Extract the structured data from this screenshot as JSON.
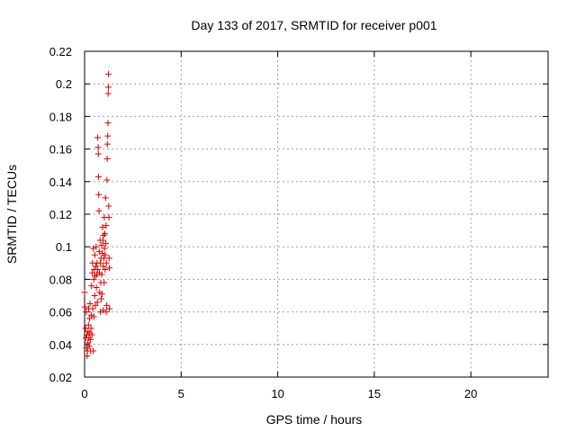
{
  "chart_data": {
    "type": "scatter",
    "title": "Day 133 of 2017, SRMTID for receiver p001",
    "xlabel": "GPS time / hours",
    "ylabel": "SRMTID / TECUs",
    "xlim": [
      0,
      24
    ],
    "ylim": [
      0.02,
      0.22
    ],
    "xticks": [
      0,
      5,
      10,
      15,
      20
    ],
    "xtick_labels": [
      "0",
      "5",
      "10",
      "15",
      "20"
    ],
    "yticks": [
      0.02,
      0.04,
      0.06,
      0.08,
      0.1,
      0.12,
      0.14,
      0.16,
      0.18,
      0.2,
      0.22
    ],
    "ytick_labels": [
      "0.02",
      "0.04",
      "0.06",
      "0.08",
      "0.1",
      "0.12",
      "0.14",
      "0.16",
      "0.18",
      "0.2",
      "0.22"
    ],
    "grid": true,
    "marker": "+",
    "color": "#e00000",
    "series": [
      {
        "name": "p001",
        "points": [
          [
            0.0,
            0.072
          ],
          [
            0.02,
            0.063
          ],
          [
            0.05,
            0.05
          ],
          [
            0.07,
            0.044
          ],
          [
            0.08,
            0.06
          ],
          [
            0.1,
            0.038
          ],
          [
            0.12,
            0.046
          ],
          [
            0.13,
            0.033
          ],
          [
            0.15,
            0.036
          ],
          [
            0.17,
            0.041
          ],
          [
            0.18,
            0.048
          ],
          [
            0.2,
            0.052
          ],
          [
            0.21,
            0.062
          ],
          [
            0.22,
            0.044
          ],
          [
            0.24,
            0.039
          ],
          [
            0.25,
            0.056
          ],
          [
            0.27,
            0.047
          ],
          [
            0.28,
            0.065
          ],
          [
            0.3,
            0.043
          ],
          [
            0.31,
            0.036
          ],
          [
            0.33,
            0.05
          ],
          [
            0.35,
            0.058
          ],
          [
            0.36,
            0.076
          ],
          [
            0.38,
            0.046
          ],
          [
            0.4,
            0.084
          ],
          [
            0.41,
            0.09
          ],
          [
            0.42,
            0.062
          ],
          [
            0.44,
            0.036
          ],
          [
            0.45,
            0.099
          ],
          [
            0.47,
            0.08
          ],
          [
            0.48,
            0.057
          ],
          [
            0.5,
            0.086
          ],
          [
            0.52,
            0.07
          ],
          [
            0.53,
            0.095
          ],
          [
            0.55,
            0.082
          ],
          [
            0.56,
            0.064
          ],
          [
            0.58,
            0.088
          ],
          [
            0.6,
            0.1
          ],
          [
            0.61,
            0.075
          ],
          [
            0.63,
            0.083
          ],
          [
            0.64,
            0.09
          ],
          [
            0.66,
            0.066
          ],
          [
            0.67,
            0.086
          ],
          [
            0.68,
            0.167
          ],
          [
            0.7,
            0.161
          ],
          [
            0.71,
            0.157
          ],
          [
            0.72,
            0.143
          ],
          [
            0.73,
            0.132
          ],
          [
            0.75,
            0.122
          ],
          [
            0.76,
            0.097
          ],
          [
            0.77,
            0.084
          ],
          [
            0.78,
            0.072
          ],
          [
            0.8,
            0.104
          ],
          [
            0.81,
            0.09
          ],
          [
            0.82,
            0.06
          ],
          [
            0.84,
            0.078
          ],
          [
            0.85,
            0.093
          ],
          [
            0.86,
            0.068
          ],
          [
            0.88,
            0.101
          ],
          [
            0.89,
            0.083
          ],
          [
            0.9,
            0.071
          ],
          [
            0.92,
            0.096
          ],
          [
            0.93,
            0.112
          ],
          [
            0.95,
            0.104
          ],
          [
            0.96,
            0.088
          ],
          [
            0.97,
            0.061
          ],
          [
            0.98,
            0.107
          ],
          [
            1.0,
            0.093
          ],
          [
            1.01,
            0.078
          ],
          [
            1.02,
            0.118
          ],
          [
            1.03,
            0.099
          ],
          [
            1.05,
            0.108
          ],
          [
            1.06,
            0.086
          ],
          [
            1.07,
            0.095
          ],
          [
            1.08,
            0.13
          ],
          [
            1.1,
            0.102
          ],
          [
            1.11,
            0.113
          ],
          [
            1.12,
            0.06
          ],
          [
            1.13,
            0.09
          ],
          [
            1.15,
            0.064
          ],
          [
            1.16,
            0.141
          ],
          [
            1.17,
            0.154
          ],
          [
            1.18,
            0.163
          ],
          [
            1.2,
            0.168
          ],
          [
            1.21,
            0.176
          ],
          [
            1.22,
            0.194
          ],
          [
            1.23,
            0.198
          ],
          [
            1.24,
            0.206
          ],
          [
            1.25,
            0.125
          ],
          [
            1.26,
            0.118
          ],
          [
            1.27,
            0.093
          ],
          [
            1.28,
            0.087
          ],
          [
            1.29,
            0.062
          ]
        ]
      }
    ]
  }
}
